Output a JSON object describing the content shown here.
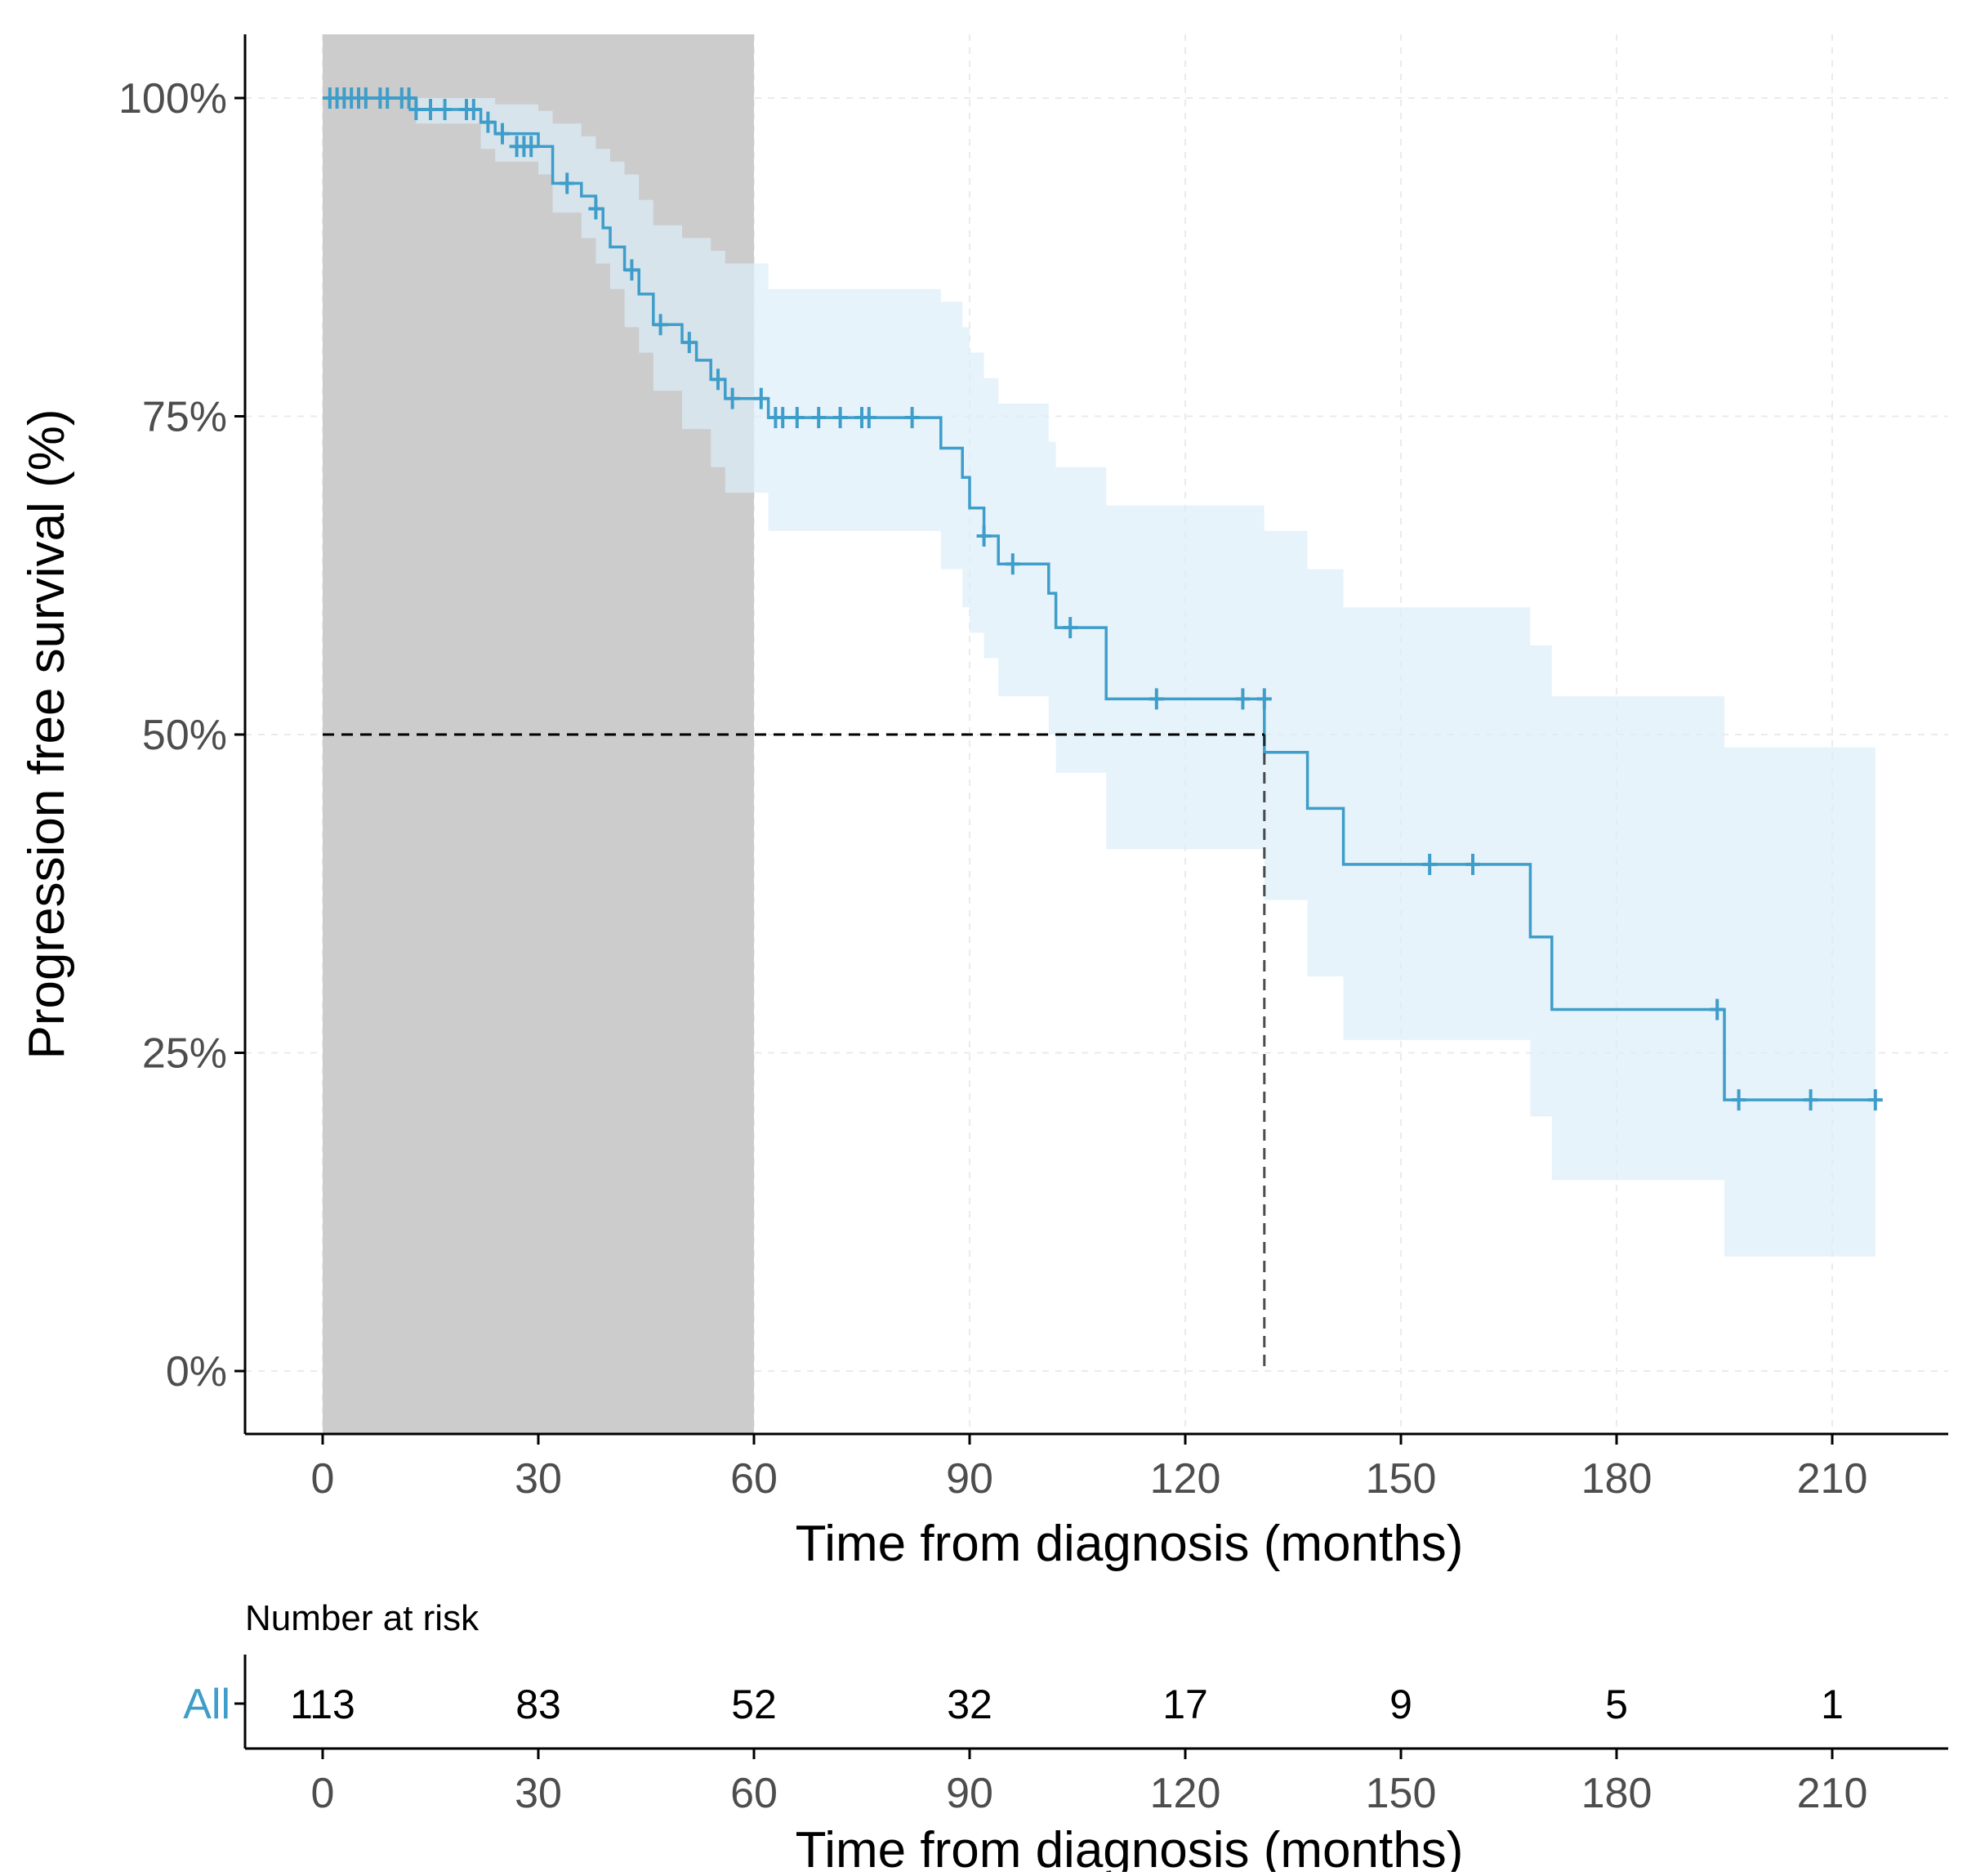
{
  "chart_data": {
    "type": "line",
    "subtype": "kaplan-meier",
    "title": "",
    "xlabel": "Time from diagnosis (months)",
    "ylabel": "Progression free survival (%)",
    "xlim": [
      -9,
      227
    ],
    "ylim": [
      -5,
      105
    ],
    "x_ticks": [
      0,
      30,
      60,
      90,
      120,
      150,
      180,
      210
    ],
    "x_tick_labels": [
      "0",
      "30",
      "60",
      "90",
      "120",
      "150",
      "180",
      "210"
    ],
    "y_ticks": [
      0,
      25,
      50,
      75,
      100
    ],
    "y_tick_labels": [
      "0%",
      "25%",
      "50%",
      "75%",
      "100%"
    ],
    "grid": true,
    "legend": "none",
    "colors": {
      "curve": "#3e9dc9",
      "ci_band": "#dceefa",
      "shaded_window": "#cccccc",
      "median_line": "#000000",
      "axis": "#000000",
      "tick_text": "#4d4d4d",
      "grid": "#ebebeb",
      "strata_label": "#3e9dc9"
    },
    "shaded_region": {
      "x_from": 0,
      "x_to": 60
    },
    "median_survival": {
      "x": 131,
      "y": 50
    },
    "series": [
      {
        "name": "All",
        "steps": [
          [
            0,
            100
          ],
          [
            13,
            100
          ],
          [
            13,
            99.1
          ],
          [
            22,
            99.1
          ],
          [
            22,
            98.1
          ],
          [
            24,
            98.1
          ],
          [
            24,
            97.2
          ],
          [
            30,
            97.2
          ],
          [
            30,
            96.2
          ],
          [
            32,
            96.2
          ],
          [
            32,
            93.3
          ],
          [
            36,
            93.3
          ],
          [
            36,
            92.3
          ],
          [
            38,
            92.3
          ],
          [
            38,
            91.3
          ],
          [
            39,
            91.3
          ],
          [
            39,
            89.8
          ],
          [
            40,
            89.8
          ],
          [
            40,
            88.3
          ],
          [
            42,
            88.3
          ],
          [
            42,
            86.5
          ],
          [
            44,
            86.5
          ],
          [
            44,
            84.6
          ],
          [
            46,
            84.6
          ],
          [
            46,
            82.2
          ],
          [
            50,
            82.2
          ],
          [
            50,
            80.8
          ],
          [
            52,
            80.8
          ],
          [
            52,
            79.4
          ],
          [
            54,
            79.4
          ],
          [
            54,
            77.9
          ],
          [
            56,
            77.9
          ],
          [
            56,
            76.4
          ],
          [
            62,
            76.4
          ],
          [
            62,
            74.9
          ],
          [
            86,
            74.9
          ],
          [
            86,
            72.5
          ],
          [
            89,
            72.5
          ],
          [
            89,
            70.2
          ],
          [
            90,
            70.2
          ],
          [
            90,
            67.8
          ],
          [
            92,
            67.8
          ],
          [
            92,
            65.6
          ],
          [
            94,
            65.6
          ],
          [
            94,
            63.4
          ],
          [
            101,
            63.4
          ],
          [
            101,
            61.1
          ],
          [
            102,
            61.1
          ],
          [
            102,
            58.4
          ],
          [
            109,
            58.4
          ],
          [
            109,
            52.8
          ],
          [
            131,
            52.8
          ],
          [
            131,
            48.6
          ],
          [
            137,
            48.6
          ],
          [
            137,
            44.2
          ],
          [
            142,
            44.2
          ],
          [
            142,
            39.8
          ],
          [
            168,
            39.8
          ],
          [
            168,
            34.1
          ],
          [
            171,
            34.1
          ],
          [
            171,
            28.4
          ],
          [
            195,
            28.4
          ],
          [
            195,
            21.3
          ],
          [
            216,
            21.3
          ]
        ],
        "ci_lower": [
          [
            0,
            100
          ],
          [
            13,
            98
          ],
          [
            22,
            96
          ],
          [
            24,
            95
          ],
          [
            30,
            94
          ],
          [
            32,
            91
          ],
          [
            36,
            89
          ],
          [
            38,
            87
          ],
          [
            40,
            85
          ],
          [
            42,
            82
          ],
          [
            44,
            80
          ],
          [
            46,
            77
          ],
          [
            50,
            74
          ],
          [
            54,
            71
          ],
          [
            56,
            69
          ],
          [
            62,
            66
          ],
          [
            86,
            63
          ],
          [
            89,
            60
          ],
          [
            90,
            58
          ],
          [
            92,
            56
          ],
          [
            94,
            53
          ],
          [
            101,
            50
          ],
          [
            102,
            47
          ],
          [
            109,
            41
          ],
          [
            131,
            37
          ],
          [
            137,
            31
          ],
          [
            142,
            26
          ],
          [
            168,
            20
          ],
          [
            171,
            15
          ],
          [
            195,
            9
          ],
          [
            216,
            9
          ]
        ],
        "ci_upper": [
          [
            0,
            100
          ],
          [
            13,
            100
          ],
          [
            22,
            100
          ],
          [
            24,
            99.5
          ],
          [
            30,
            99
          ],
          [
            32,
            98
          ],
          [
            36,
            97
          ],
          [
            38,
            96
          ],
          [
            40,
            95
          ],
          [
            42,
            94
          ],
          [
            44,
            92
          ],
          [
            46,
            90
          ],
          [
            50,
            89
          ],
          [
            54,
            88
          ],
          [
            56,
            87
          ],
          [
            62,
            85
          ],
          [
            86,
            84
          ],
          [
            89,
            82
          ],
          [
            90,
            80
          ],
          [
            92,
            78
          ],
          [
            94,
            76
          ],
          [
            101,
            73
          ],
          [
            102,
            71
          ],
          [
            109,
            68
          ],
          [
            131,
            66
          ],
          [
            137,
            63
          ],
          [
            142,
            60
          ],
          [
            168,
            57
          ],
          [
            171,
            53
          ],
          [
            195,
            49
          ],
          [
            216,
            49
          ]
        ],
        "censored": [
          [
            1,
            100
          ],
          [
            2,
            100
          ],
          [
            3,
            100
          ],
          [
            4,
            100
          ],
          [
            5,
            100
          ],
          [
            6,
            100
          ],
          [
            8,
            100
          ],
          [
            9,
            100
          ],
          [
            11,
            100
          ],
          [
            12,
            100
          ],
          [
            13,
            99.1
          ],
          [
            15,
            99.1
          ],
          [
            17,
            99.1
          ],
          [
            20,
            99.1
          ],
          [
            21,
            99.1
          ],
          [
            23,
            98.1
          ],
          [
            25,
            97.2
          ],
          [
            27,
            96.2
          ],
          [
            28,
            96.2
          ],
          [
            29,
            96.2
          ],
          [
            34,
            93.3
          ],
          [
            38,
            91.3
          ],
          [
            43,
            86.5
          ],
          [
            47,
            82.2
          ],
          [
            51,
            80.8
          ],
          [
            55,
            77.9
          ],
          [
            57,
            76.4
          ],
          [
            61,
            76.4
          ],
          [
            63,
            74.9
          ],
          [
            64,
            74.9
          ],
          [
            66,
            74.9
          ],
          [
            69,
            74.9
          ],
          [
            72,
            74.9
          ],
          [
            75,
            74.9
          ],
          [
            76,
            74.9
          ],
          [
            82,
            74.9
          ],
          [
            92,
            65.6
          ],
          [
            96,
            63.4
          ],
          [
            104,
            58.4
          ],
          [
            116,
            52.8
          ],
          [
            128,
            52.8
          ],
          [
            131,
            52.8
          ],
          [
            154,
            39.8
          ],
          [
            160,
            39.8
          ],
          [
            194,
            28.4
          ],
          [
            197,
            21.3
          ],
          [
            207,
            21.3
          ],
          [
            216,
            21.3
          ]
        ]
      }
    ],
    "risk_table": {
      "title": "Number at risk",
      "strata": "All",
      "times": [
        0,
        30,
        60,
        90,
        120,
        150,
        180,
        210
      ],
      "counts": [
        "113",
        "83",
        "52",
        "32",
        "17",
        "9",
        "5",
        "1"
      ],
      "xlabel": "Time from diagnosis (months)"
    }
  }
}
